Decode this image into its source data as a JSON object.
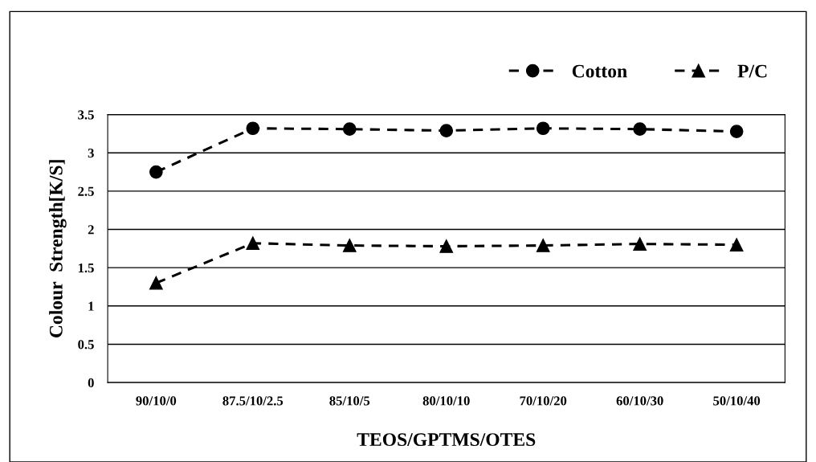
{
  "chart_data": {
    "type": "line",
    "xlabel": "TEOS/GPTMS/OTES",
    "ylabel": "Colour  Strength[K/S]",
    "categories": [
      "90/10/0",
      "87.5/10/2.5",
      "85/10/5",
      "80/10/10",
      "70/10/20",
      "60/10/30",
      "50/10/40"
    ],
    "series": [
      {
        "name": "Cotton",
        "color": "#000000",
        "marker": "circle",
        "values": [
          2.75,
          3.32,
          3.31,
          3.29,
          3.32,
          3.31,
          3.28
        ]
      },
      {
        "name": "P/C",
        "color": "#000000",
        "marker": "triangle",
        "values": [
          1.3,
          1.82,
          1.79,
          1.78,
          1.79,
          1.81,
          1.8
        ]
      }
    ],
    "line_style": "dashed",
    "ylim": [
      0,
      3.5
    ],
    "yticks": [
      0,
      0.5,
      1,
      1.5,
      2,
      2.5,
      3,
      3.5
    ],
    "grid": "y",
    "legend": "top right"
  }
}
